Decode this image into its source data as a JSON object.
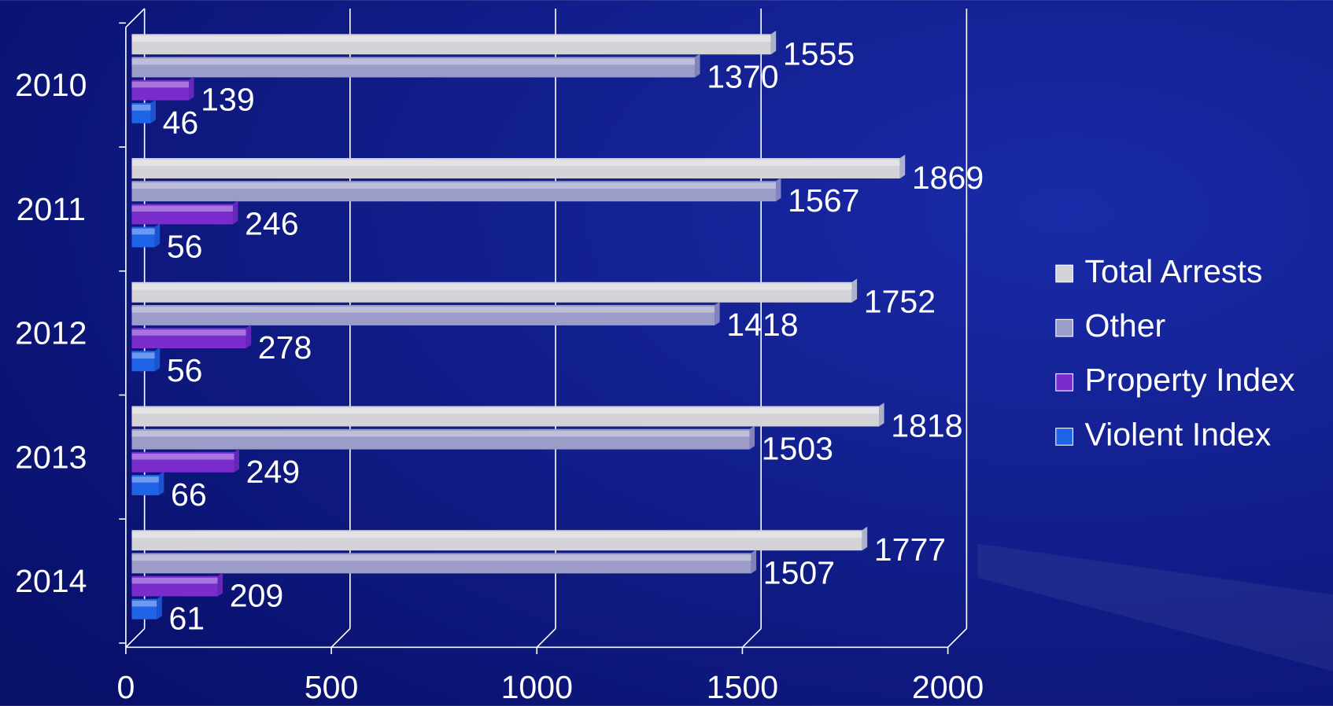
{
  "chart_data": {
    "type": "bar",
    "orientation": "horizontal",
    "categories": [
      "2010",
      "2011",
      "2012",
      "2013",
      "2014"
    ],
    "series": [
      {
        "name": "Total Arrests",
        "color": "#d4d4d8",
        "values": [
          1555,
          1869,
          1752,
          1818,
          1777
        ]
      },
      {
        "name": "Other",
        "color": "#9c9cc8",
        "values": [
          1370,
          1567,
          1418,
          1503,
          1507
        ]
      },
      {
        "name": "Property Index",
        "color": "#7a2ccc",
        "values": [
          139,
          246,
          278,
          249,
          209
        ]
      },
      {
        "name": "Violent Index",
        "color": "#1f63e6",
        "values": [
          46,
          56,
          56,
          66,
          61
        ]
      }
    ],
    "xlim": [
      0,
      2000
    ],
    "xticks": [
      0,
      500,
      1000,
      1500,
      2000
    ],
    "grid": true,
    "legend": "right"
  }
}
